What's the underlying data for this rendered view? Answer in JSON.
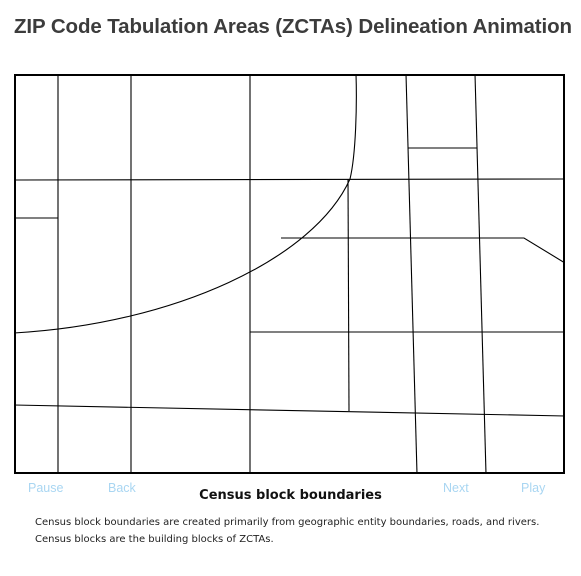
{
  "page": {
    "title": "ZIP Code Tabulation Areas (ZCTAs) Delineation Animation"
  },
  "controls": {
    "pause_label": "Pause",
    "back_label": "Back",
    "next_label": "Next",
    "play_label": "Play",
    "color": "#a9d6f2"
  },
  "step": {
    "title": "Census block boundaries",
    "description_lines": [
      "Census block boundaries are created primarily from geographic entity boundaries, roads, and rivers.",
      "Census blocks are the building blocks of ZCTAs."
    ]
  },
  "map": {
    "line_color": "#000000",
    "background": "#ffffff"
  }
}
